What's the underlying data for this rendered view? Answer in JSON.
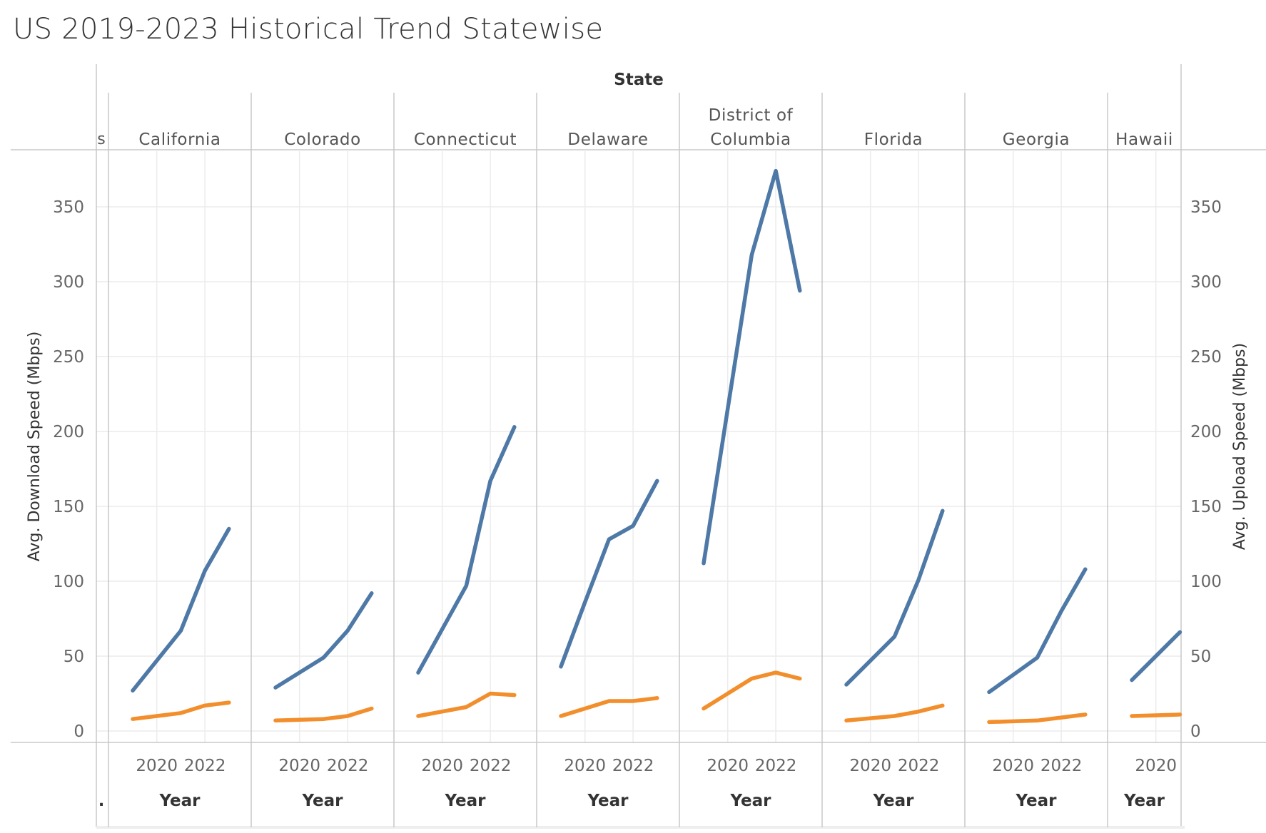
{
  "title": "US 2019-2023 Historical Trend Statewise",
  "chart_data": {
    "type": "line",
    "title": "US 2019-2023 Historical Trend Statewise",
    "column_header": "State",
    "x_label": "Year",
    "x_ticks": [
      2020,
      2022
    ],
    "y_label_left": "Avg. Download Speed (Mbps)",
    "y_label_right": "Avg. Upload Speed (Mbps)",
    "y_ticks": [
      0,
      50,
      100,
      150,
      200,
      250,
      300,
      350
    ],
    "ylim": [
      0,
      380
    ],
    "grid": true,
    "series_colors": {
      "download": "#4e79a7",
      "upload": "#f28e2b"
    },
    "cut_label": "s",
    "cut_dot": ".",
    "panels": [
      {
        "state": "California",
        "x": [
          2019,
          2020,
          2021,
          2022,
          2023
        ],
        "download": [
          27,
          47,
          67,
          107,
          135
        ],
        "upload": [
          8,
          10,
          12,
          17,
          19
        ]
      },
      {
        "state": "Colorado",
        "x": [
          2019,
          2020,
          2021,
          2022,
          2023
        ],
        "download": [
          29,
          39,
          49,
          67,
          92
        ],
        "upload": [
          7,
          7.5,
          8,
          10,
          15
        ]
      },
      {
        "state": "Connecticut",
        "x": [
          2019,
          2020,
          2021,
          2022,
          2023
        ],
        "download": [
          39,
          68,
          97,
          167,
          203
        ],
        "upload": [
          10,
          13,
          16,
          25,
          24
        ]
      },
      {
        "state": "Delaware",
        "x": [
          2019,
          2020,
          2021,
          2022,
          2023
        ],
        "download": [
          43,
          86,
          128,
          137,
          167
        ],
        "upload": [
          10,
          15,
          20,
          20,
          22
        ]
      },
      {
        "state": "District of Columbia",
        "x": [
          2019,
          2020,
          2021,
          2022,
          2023
        ],
        "download": [
          112,
          215,
          318,
          374,
          294
        ],
        "upload": [
          15,
          25,
          35,
          39,
          35
        ]
      },
      {
        "state": "Florida",
        "x": [
          2019,
          2020,
          2021,
          2022,
          2023
        ],
        "download": [
          31,
          47,
          63,
          101,
          147
        ],
        "upload": [
          7,
          8.5,
          10,
          13,
          17
        ]
      },
      {
        "state": "Georgia",
        "x": [
          2019,
          2020,
          2021,
          2022,
          2023
        ],
        "download": [
          26,
          37.5,
          49,
          80,
          108
        ],
        "upload": [
          6,
          6.5,
          7,
          9,
          11
        ]
      },
      {
        "state": "Hawaii",
        "x": [
          2019,
          2020,
          2021
        ],
        "download": [
          34,
          50,
          66
        ],
        "upload": [
          10,
          10.5,
          11
        ]
      }
    ]
  }
}
